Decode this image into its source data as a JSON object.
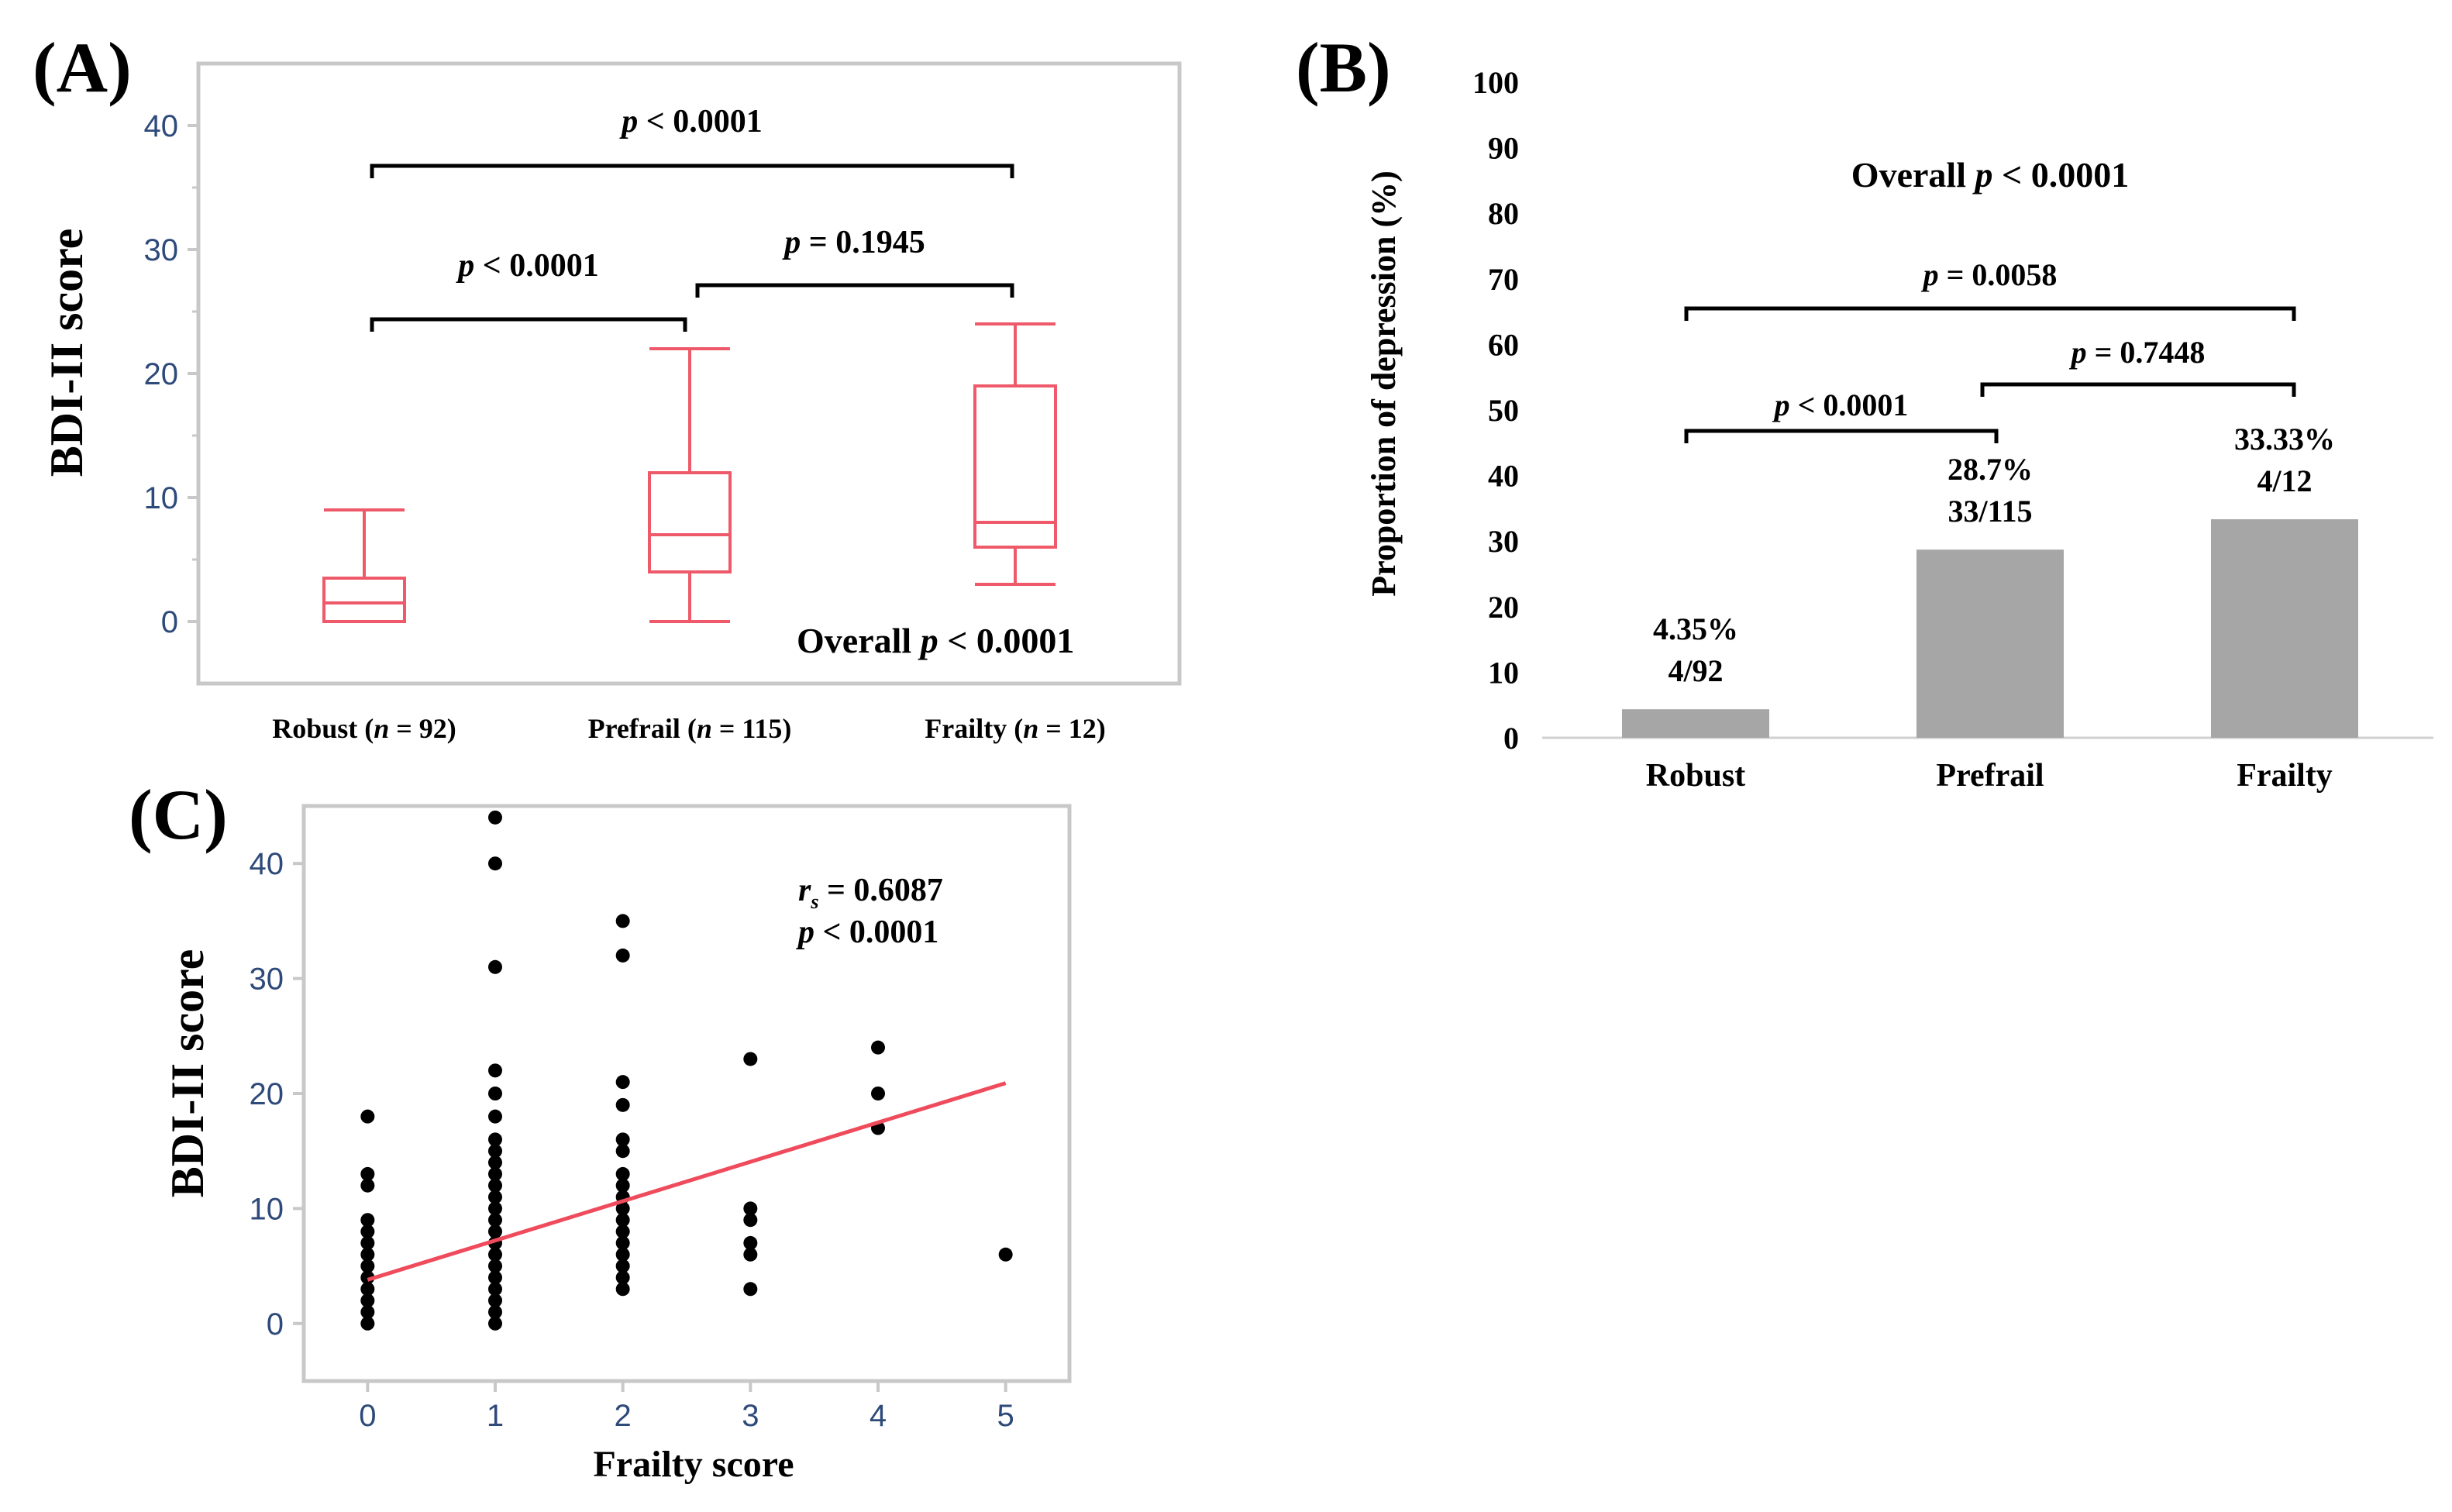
{
  "colors": {
    "box": "#ef5a6a",
    "bar": "#a6a6a6",
    "frame": "#c8c8c8",
    "point": "#000000",
    "fit_line": "#ef4b5c",
    "tick_text": "#2e4a7a"
  },
  "chart_data": [
    {
      "type": "box",
      "panel_label": "(A)",
      "ylabel": "BDI-II score",
      "ylim": [
        -5,
        45
      ],
      "yticks": [
        "0",
        "10",
        "20",
        "30",
        "40"
      ],
      "categories": [
        {
          "name": "Robust",
          "n_label": "n",
          "n_text": " = 92"
        },
        {
          "name": "Prefrail",
          "n_label": "n",
          "n_text": " = 115"
        },
        {
          "name": "Frailty",
          "n_label": "n",
          "n_text": " = 12"
        }
      ],
      "boxes": [
        {
          "min": 0,
          "q1": 0,
          "median": 1.5,
          "q3": 3.5,
          "max": 9
        },
        {
          "min": 0,
          "q1": 4,
          "median": 7,
          "q3": 12,
          "max": 22
        },
        {
          "min": 3,
          "q1": 6,
          "median": 8,
          "q3": 19,
          "max": 24
        }
      ],
      "comparisons": [
        {
          "pair": [
            "Robust",
            "Frailty"
          ],
          "p_italic": "p",
          "p_text": " < 0.0001"
        },
        {
          "pair": [
            "Robust",
            "Prefrail"
          ],
          "p_italic": "p",
          "p_text": " < 0.0001"
        },
        {
          "pair": [
            "Prefrail",
            "Frailty"
          ],
          "p_italic": "p",
          "p_text": " = 0.1945"
        }
      ],
      "overall": {
        "prefix": "Overall ",
        "p_italic": "p",
        "p_text": " < 0.0001"
      }
    },
    {
      "type": "bar",
      "panel_label": "(B)",
      "ylabel": "Proportion of depression (%)",
      "ylim": [
        0,
        100
      ],
      "yticks": [
        "0",
        "10",
        "20",
        "30",
        "40",
        "50",
        "60",
        "70",
        "80",
        "90",
        "100"
      ],
      "categories": [
        "Robust",
        "Prefrail",
        "Frailty"
      ],
      "values": [
        4.35,
        28.7,
        33.33
      ],
      "pct_labels": [
        "4.35%",
        "28.7%",
        "33.33%"
      ],
      "count_labels": [
        "4/92",
        "33/115",
        "4/12"
      ],
      "comparisons": [
        {
          "pair": [
            "Robust",
            "Frailty"
          ],
          "p_italic": "p",
          "p_text": " = 0.0058"
        },
        {
          "pair": [
            "Prefrail",
            "Frailty"
          ],
          "p_italic": "p",
          "p_text": " = 0.7448"
        },
        {
          "pair": [
            "Robust",
            "Prefrail"
          ],
          "p_italic": "p",
          "p_text": " < 0.0001"
        }
      ],
      "overall": {
        "prefix": "Overall ",
        "p_italic": "p",
        "p_text": " < 0.0001"
      }
    },
    {
      "type": "scatter",
      "panel_label": "(C)",
      "xlabel": "Frailty score",
      "ylabel": "BDI-II score",
      "xlim": [
        -0.5,
        5.5
      ],
      "ylim": [
        -5,
        45
      ],
      "xticks": [
        "0",
        "1",
        "2",
        "3",
        "4",
        "5"
      ],
      "yticks": [
        "0",
        "10",
        "20",
        "30",
        "40"
      ],
      "points": [
        [
          0,
          0
        ],
        [
          0,
          1
        ],
        [
          0,
          2
        ],
        [
          0,
          3
        ],
        [
          0,
          4
        ],
        [
          0,
          5
        ],
        [
          0,
          6
        ],
        [
          0,
          7
        ],
        [
          0,
          8
        ],
        [
          0,
          9
        ],
        [
          0,
          12
        ],
        [
          0,
          13
        ],
        [
          0,
          18
        ],
        [
          1,
          0
        ],
        [
          1,
          1
        ],
        [
          1,
          2
        ],
        [
          1,
          3
        ],
        [
          1,
          4
        ],
        [
          1,
          5
        ],
        [
          1,
          6
        ],
        [
          1,
          7
        ],
        [
          1,
          8
        ],
        [
          1,
          9
        ],
        [
          1,
          10
        ],
        [
          1,
          11
        ],
        [
          1,
          12
        ],
        [
          1,
          13
        ],
        [
          1,
          14
        ],
        [
          1,
          15
        ],
        [
          1,
          16
        ],
        [
          1,
          18
        ],
        [
          1,
          20
        ],
        [
          1,
          22
        ],
        [
          1,
          31
        ],
        [
          1,
          40
        ],
        [
          1,
          44
        ],
        [
          2,
          3
        ],
        [
          2,
          4
        ],
        [
          2,
          5
        ],
        [
          2,
          6
        ],
        [
          2,
          7
        ],
        [
          2,
          8
        ],
        [
          2,
          9
        ],
        [
          2,
          10
        ],
        [
          2,
          11
        ],
        [
          2,
          12
        ],
        [
          2,
          13
        ],
        [
          2,
          15
        ],
        [
          2,
          16
        ],
        [
          2,
          19
        ],
        [
          2,
          21
        ],
        [
          2,
          32
        ],
        [
          2,
          35
        ],
        [
          3,
          3
        ],
        [
          3,
          6
        ],
        [
          3,
          7
        ],
        [
          3,
          9
        ],
        [
          3,
          10
        ],
        [
          3,
          23
        ],
        [
          4,
          17
        ],
        [
          4,
          20
        ],
        [
          4,
          24
        ],
        [
          5,
          6
        ]
      ],
      "fit_line": {
        "x": [
          0,
          5
        ],
        "y": [
          3.8,
          20.9
        ]
      },
      "stats": {
        "r_label": "r",
        "r_sub": "s",
        "r_text": " = 0.6087",
        "p_italic": "p",
        "p_text": " < 0.0001"
      }
    }
  ]
}
